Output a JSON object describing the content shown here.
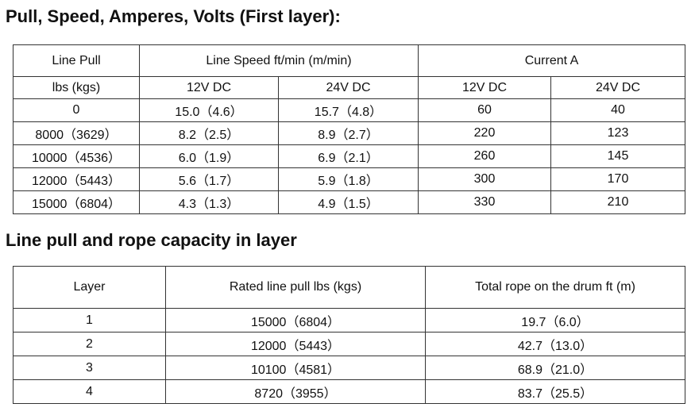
{
  "section1": {
    "title": "Pull, Speed, Amperes, Volts (First layer):",
    "table": {
      "header_top": [
        "Line Pull",
        "Line Speed ft/min (m/min)",
        "Current  A"
      ],
      "header_sub": [
        "lbs (kgs)",
        "12V DC",
        "24V DC",
        "12V DC",
        "24V DC"
      ],
      "rows": [
        [
          "0",
          "15.0（4.6）",
          "15.7（4.8）",
          "60",
          "40"
        ],
        [
          "8000（3629）",
          "8.2（2.5）",
          "8.9（2.7）",
          "220",
          "123"
        ],
        [
          "10000（4536）",
          "6.0（1.9）",
          "6.9（2.1）",
          "260",
          "145"
        ],
        [
          "12000（5443）",
          "5.6（1.7）",
          "5.9（1.8）",
          "300",
          "170"
        ],
        [
          "15000（6804）",
          "4.3（1.3）",
          "4.9（1.5）",
          "330",
          "210"
        ]
      ]
    }
  },
  "section2": {
    "title": "Line pull and rope capacity in layer",
    "table": {
      "header": [
        "Layer",
        "Rated line pull lbs (kgs)",
        "Total rope on the drum ft (m)"
      ],
      "rows": [
        [
          "1",
          "15000（6804）",
          "19.7（6.0）"
        ],
        [
          "2",
          "12000（5443）",
          "42.7（13.0）"
        ],
        [
          "3",
          "10100（4581）",
          "68.9（21.0）"
        ],
        [
          "4",
          "8720（3955）",
          "83.7（25.5）"
        ]
      ]
    }
  }
}
